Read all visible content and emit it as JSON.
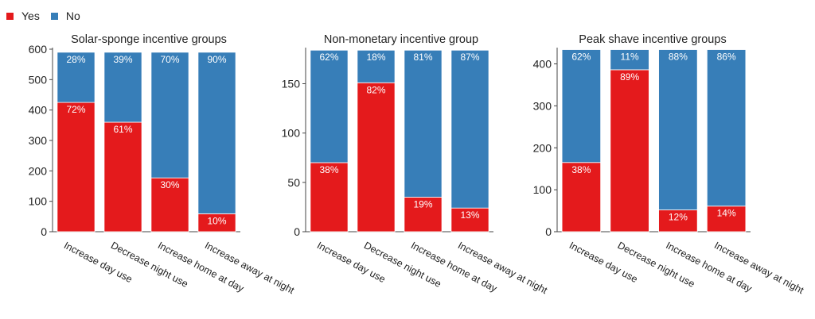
{
  "legend": [
    {
      "label": "Yes",
      "color": "#e41a1c"
    },
    {
      "label": "No",
      "color": "#377eb8"
    }
  ],
  "chart_data": [
    {
      "type": "bar",
      "stacked": true,
      "title": "Solar-sponge incentive groups",
      "categories": [
        "Increase day use",
        "Decrease night use",
        "Increase home at day",
        "Increase away at night"
      ],
      "ylim": [
        0,
        600
      ],
      "yticks": [
        0,
        100,
        200,
        300,
        400,
        500,
        600
      ],
      "total": 590,
      "series": [
        {
          "name": "Yes",
          "values": [
            425,
            360,
            177,
            59
          ],
          "labels": [
            "72%",
            "61%",
            "30%",
            "10%"
          ]
        },
        {
          "name": "No",
          "values": [
            165,
            230,
            413,
            531
          ],
          "labels": [
            "28%",
            "39%",
            "70%",
            "90%"
          ]
        }
      ]
    },
    {
      "type": "bar",
      "stacked": true,
      "title": "Non-monetary incentive group",
      "categories": [
        "Increase day use",
        "Decrease night use",
        "Increase home at day",
        "Increase away at night"
      ],
      "ylim": [
        0,
        185
      ],
      "yticks": [
        0,
        50,
        100,
        150
      ],
      "total": 184,
      "series": [
        {
          "name": "Yes",
          "values": [
            70,
            151,
            35,
            24
          ],
          "labels": [
            "38%",
            "82%",
            "19%",
            "13%"
          ]
        },
        {
          "name": "No",
          "values": [
            114,
            33,
            149,
            160
          ],
          "labels": [
            "62%",
            "18%",
            "81%",
            "87%"
          ]
        }
      ]
    },
    {
      "type": "bar",
      "stacked": true,
      "title": "Peak shave incentive groups",
      "categories": [
        "Increase day use",
        "Decrease night use",
        "Increase home at day",
        "Increase away at night"
      ],
      "ylim": [
        0,
        435
      ],
      "yticks": [
        0,
        100,
        200,
        300,
        400
      ],
      "total": 434,
      "series": [
        {
          "name": "Yes",
          "values": [
            165,
            386,
            52,
            61
          ],
          "labels": [
            "38%",
            "89%",
            "12%",
            "14%"
          ]
        },
        {
          "name": "No",
          "values": [
            269,
            48,
            382,
            373
          ],
          "labels": [
            "62%",
            "11%",
            "88%",
            "86%"
          ]
        }
      ]
    }
  ]
}
